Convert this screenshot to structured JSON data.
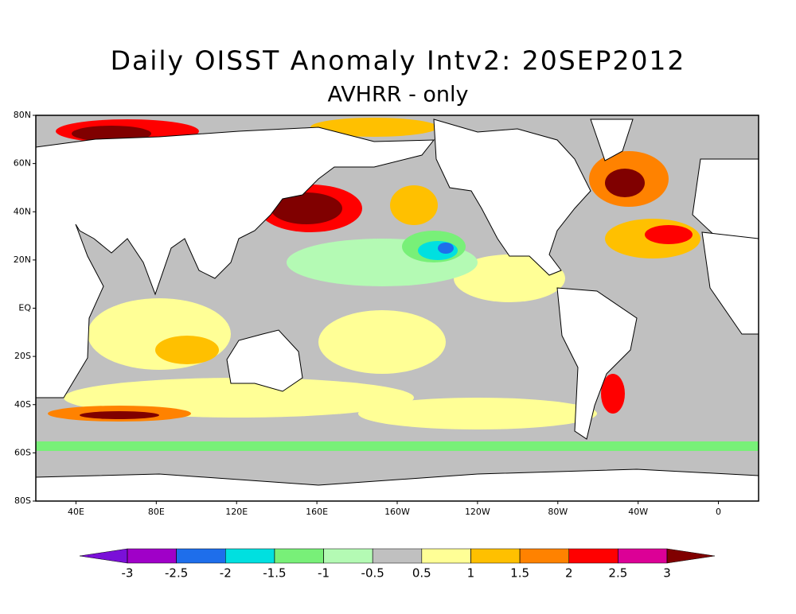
{
  "chart_data": {
    "type": "map",
    "title": "Daily OISST Anomaly Intv2: 20SEP2012",
    "subtitle": "AVHRR - only",
    "xlim": [
      20,
      380
    ],
    "ylim": [
      -80,
      80
    ],
    "xticks": [
      {
        "value": 40,
        "label": "40E"
      },
      {
        "value": 80,
        "label": "80E"
      },
      {
        "value": 120,
        "label": "120E"
      },
      {
        "value": 160,
        "label": "160E"
      },
      {
        "value": 200,
        "label": "160W"
      },
      {
        "value": 240,
        "label": "120W"
      },
      {
        "value": 280,
        "label": "80W"
      },
      {
        "value": 320,
        "label": "40W"
      },
      {
        "value": 360,
        "label": "0"
      }
    ],
    "yticks": [
      {
        "value": 80,
        "label": "80N"
      },
      {
        "value": 60,
        "label": "60N"
      },
      {
        "value": 40,
        "label": "40N"
      },
      {
        "value": 20,
        "label": "20N"
      },
      {
        "value": 0,
        "label": "EQ"
      },
      {
        "value": -20,
        "label": "20S"
      },
      {
        "value": -40,
        "label": "40S"
      },
      {
        "value": -60,
        "label": "60S"
      },
      {
        "value": -80,
        "label": "80S"
      }
    ],
    "colorbar": {
      "levels": [
        -3,
        -2.5,
        -2,
        -1.5,
        -1,
        -0.5,
        0.5,
        1,
        1.5,
        2,
        2.5,
        3
      ],
      "colors": [
        "#7a10d8",
        "#a000c8",
        "#1e6eeb",
        "#00e0e0",
        "#78f078",
        "#b4fab4",
        "#c0c0c0",
        "#ffff96",
        "#ffc000",
        "#ff8200",
        "#ff0000",
        "#dc0096",
        "#800000"
      ]
    }
  }
}
